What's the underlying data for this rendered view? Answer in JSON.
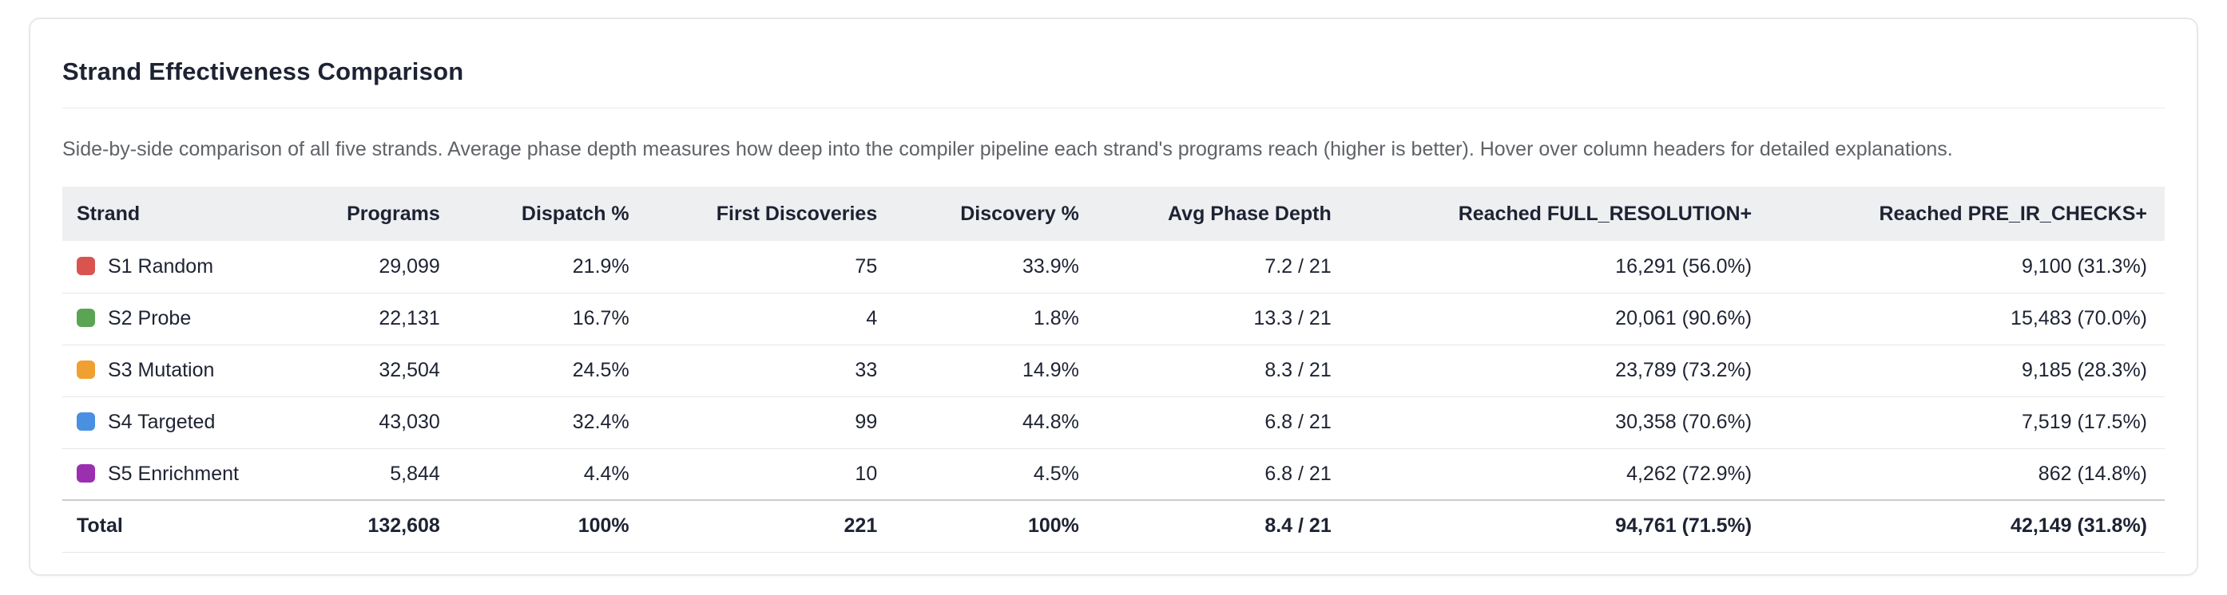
{
  "card": {
    "title": "Strand Effectiveness Comparison",
    "subtitle": "Side-by-side comparison of all five strands. Average phase depth measures how deep into the compiler pipeline each strand's programs reach (higher is better). Hover over column headers for detailed explanations."
  },
  "colors": {
    "s1_red": "#d9544f",
    "s2_green": "#5aa454",
    "s3_orange": "#f0a030",
    "s4_blue": "#4a90e2",
    "s5_purple": "#9b2fb0",
    "header_bg": "#eeeff1",
    "text_dark": "#1e2333",
    "text_gray": "#5f6368"
  },
  "chart_data": {
    "type": "table",
    "title": "Strand Effectiveness Comparison",
    "columns": [
      "Strand",
      "Programs",
      "Dispatch %",
      "First Discoveries",
      "Discovery %",
      "Avg Phase Depth",
      "Reached FULL_RESOLUTION+",
      "Reached PRE_IR_CHECKS+"
    ],
    "rows": [
      {
        "color": "#d9544f",
        "cells": [
          "S1 Random",
          "29,099",
          "21.9%",
          "75",
          "33.9%",
          "7.2 / 21",
          "16,291 (56.0%)",
          "9,100 (31.3%)"
        ]
      },
      {
        "color": "#5aa454",
        "cells": [
          "S2 Probe",
          "22,131",
          "16.7%",
          "4",
          "1.8%",
          "13.3 / 21",
          "20,061 (90.6%)",
          "15,483 (70.0%)"
        ]
      },
      {
        "color": "#f0a030",
        "cells": [
          "S3 Mutation",
          "32,504",
          "24.5%",
          "33",
          "14.9%",
          "8.3 / 21",
          "23,789 (73.2%)",
          "9,185 (28.3%)"
        ]
      },
      {
        "color": "#4a90e2",
        "cells": [
          "S4 Targeted",
          "43,030",
          "32.4%",
          "99",
          "44.8%",
          "6.8 / 21",
          "30,358 (70.6%)",
          "7,519 (17.5%)"
        ]
      },
      {
        "color": "#9b2fb0",
        "cells": [
          "S5 Enrichment",
          "5,844",
          "4.4%",
          "10",
          "4.5%",
          "6.8 / 21",
          "4,262 (72.9%)",
          "862 (14.8%)"
        ]
      }
    ],
    "total": {
      "cells": [
        "Total",
        "132,608",
        "100%",
        "221",
        "100%",
        "8.4 / 21",
        "94,761 (71.5%)",
        "42,149 (31.8%)"
      ]
    }
  }
}
